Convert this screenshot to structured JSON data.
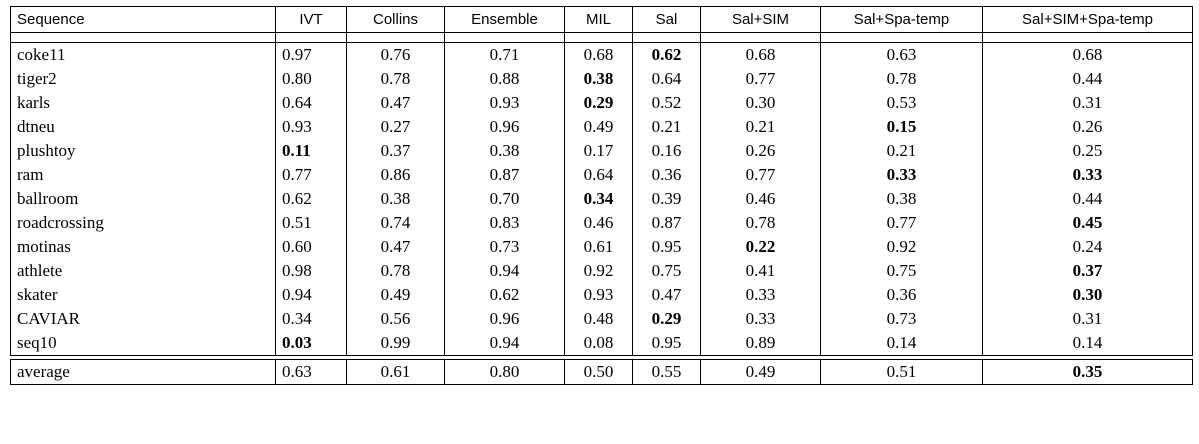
{
  "table": {
    "headers": [
      "Sequence",
      "IVT",
      "Collins",
      "Ensemble",
      "MIL",
      "Sal",
      "Sal+SIM",
      "Sal+Spa-temp",
      "Sal+SIM+Spa-temp"
    ],
    "rows": [
      {
        "name": "coke11",
        "values": [
          "0.97",
          "0.76",
          "0.71",
          "0.68",
          "0.62",
          "0.68",
          "0.63",
          "0.68"
        ],
        "bold": [
          4
        ]
      },
      {
        "name": "tiger2",
        "values": [
          "0.80",
          "0.78",
          "0.88",
          "0.38",
          "0.64",
          "0.77",
          "0.78",
          "0.44"
        ],
        "bold": [
          3
        ]
      },
      {
        "name": "karls",
        "values": [
          "0.64",
          "0.47",
          "0.93",
          "0.29",
          "0.52",
          "0.30",
          "0.53",
          "0.31"
        ],
        "bold": [
          3
        ]
      },
      {
        "name": "dtneu",
        "values": [
          "0.93",
          "0.27",
          "0.96",
          "0.49",
          "0.21",
          "0.21",
          "0.15",
          "0.26"
        ],
        "bold": [
          6
        ]
      },
      {
        "name": "plushtoy",
        "values": [
          "0.11",
          "0.37",
          "0.38",
          "0.17",
          "0.16",
          "0.26",
          "0.21",
          "0.25"
        ],
        "bold": [
          0
        ]
      },
      {
        "name": "ram",
        "values": [
          "0.77",
          "0.86",
          "0.87",
          "0.64",
          "0.36",
          "0.77",
          "0.33",
          "0.33"
        ],
        "bold": [
          6,
          7
        ]
      },
      {
        "name": "ballroom",
        "values": [
          "0.62",
          "0.38",
          "0.70",
          "0.34",
          "0.39",
          "0.46",
          "0.38",
          "0.44"
        ],
        "bold": [
          3
        ]
      },
      {
        "name": "roadcrossing",
        "values": [
          "0.51",
          "0.74",
          "0.83",
          "0.46",
          "0.87",
          "0.78",
          "0.77",
          "0.45"
        ],
        "bold": [
          7
        ]
      },
      {
        "name": "motinas",
        "values": [
          "0.60",
          "0.47",
          "0.73",
          "0.61",
          "0.95",
          "0.22",
          "0.92",
          "0.24"
        ],
        "bold": [
          5
        ]
      },
      {
        "name": "athlete",
        "values": [
          "0.98",
          "0.78",
          "0.94",
          "0.92",
          "0.75",
          "0.41",
          "0.75",
          "0.37"
        ],
        "bold": [
          7
        ]
      },
      {
        "name": "skater",
        "values": [
          "0.94",
          "0.49",
          "0.62",
          "0.93",
          "0.47",
          "0.33",
          "0.36",
          "0.30"
        ],
        "bold": [
          7
        ]
      },
      {
        "name": "CAVIAR",
        "values": [
          "0.34",
          "0.56",
          "0.96",
          "0.48",
          "0.29",
          "0.33",
          "0.73",
          "0.31"
        ],
        "bold": [
          4
        ]
      },
      {
        "name": "seq10",
        "values": [
          "0.03",
          "0.99",
          "0.94",
          "0.08",
          "0.95",
          "0.89",
          "0.14",
          "0.14"
        ],
        "bold": [
          0
        ]
      }
    ],
    "footer": {
      "name": "average",
      "values": [
        "0.63",
        "0.61",
        "0.80",
        "0.50",
        "0.55",
        "0.49",
        "0.51",
        "0.35"
      ],
      "bold": [
        7
      ]
    }
  }
}
